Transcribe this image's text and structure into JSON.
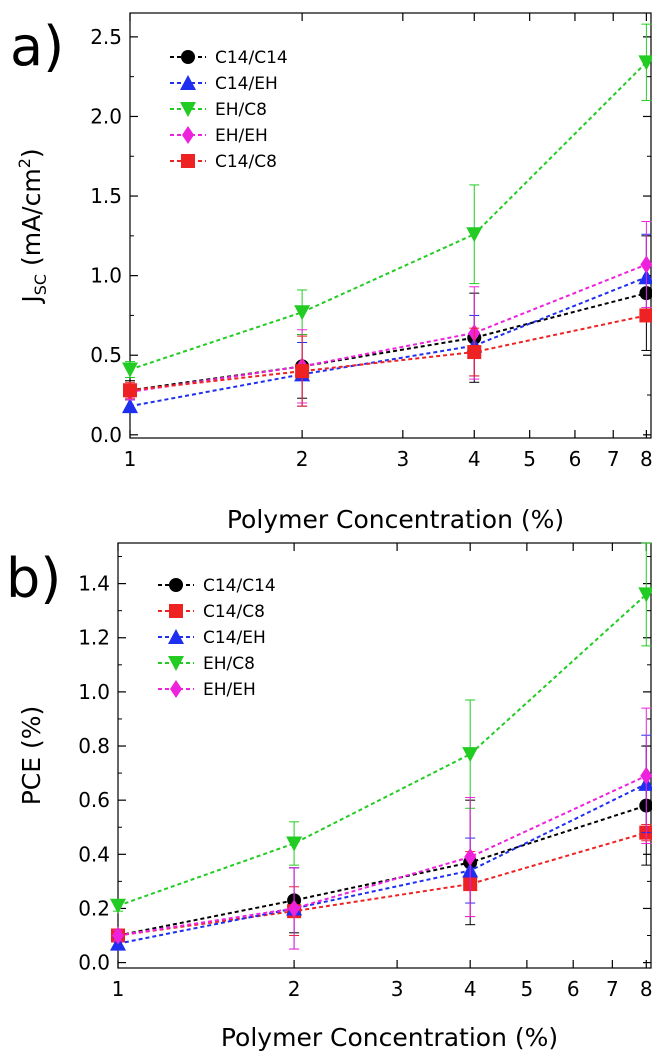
{
  "chart_data": [
    {
      "type": "line",
      "panel_label": "a)",
      "ylabel_main": "J",
      "ylabel_sub": "SC",
      "ylabel_tail": " (mA/cm",
      "ylabel_sup": "2",
      "ylabel_end": ")",
      "xlabel": "Polymer Concentration (%)",
      "x_scale": "log",
      "xlim": [
        1,
        8.15
      ],
      "ylim": [
        -0.02,
        2.65
      ],
      "x_ticks": [
        1,
        2,
        3,
        4,
        5,
        6,
        7,
        8
      ],
      "x_tick_labels": [
        "1",
        "2",
        "3",
        "4",
        "5",
        "6",
        "7",
        "8"
      ],
      "y_ticks": [
        0.0,
        0.5,
        1.0,
        1.5,
        2.0,
        2.5
      ],
      "y_tick_labels": [
        "0.0",
        "0.5",
        "1.0",
        "1.5",
        "2.0",
        "2.5"
      ],
      "legend_position": "top-left",
      "grid": false,
      "series": [
        {
          "name": "C14/C14",
          "color": "#000000",
          "marker": "circle",
          "x": [
            1,
            2,
            4,
            8
          ],
          "values": [
            0.28,
            0.43,
            0.61,
            0.89
          ],
          "errors": [
            0.06,
            0.2,
            0.28,
            0.36
          ]
        },
        {
          "name": "C14/EH",
          "color": "#1f2ff0",
          "marker": "triangle-up",
          "x": [
            1,
            2,
            4,
            8
          ],
          "values": [
            0.18,
            0.38,
            0.56,
            0.99
          ],
          "errors": [
            0.04,
            0.2,
            0.19,
            0.27
          ]
        },
        {
          "name": "EH/C8",
          "color": "#22cc22",
          "marker": "triangle-down",
          "x": [
            1,
            2,
            4,
            8
          ],
          "values": [
            0.41,
            0.77,
            1.26,
            2.34
          ],
          "errors": [
            0.05,
            0.14,
            0.31,
            0.24
          ]
        },
        {
          "name": "EH/EH",
          "color": "#ee22dd",
          "marker": "diamond",
          "x": [
            1,
            2,
            4,
            8
          ],
          "values": [
            0.27,
            0.43,
            0.64,
            1.07
          ],
          "errors": [
            0.05,
            0.23,
            0.29,
            0.27
          ]
        },
        {
          "name": "C14/C8",
          "color": "#ee2222",
          "marker": "square",
          "x": [
            1,
            2,
            4,
            8
          ],
          "values": [
            0.28,
            0.4,
            0.52,
            0.75
          ],
          "errors": [
            0.05,
            0.22,
            0.15,
            0.03
          ]
        }
      ]
    },
    {
      "type": "line",
      "panel_label": "b)",
      "ylabel_main": "PCE (%)",
      "xlabel": "Polymer Concentration (%)",
      "x_scale": "log",
      "xlim": [
        1,
        8.15
      ],
      "ylim": [
        -0.02,
        1.55
      ],
      "x_ticks": [
        1,
        2,
        3,
        4,
        5,
        6,
        7,
        8
      ],
      "x_tick_labels": [
        "1",
        "2",
        "3",
        "4",
        "5",
        "6",
        "7",
        "8"
      ],
      "y_ticks": [
        0.0,
        0.2,
        0.4,
        0.6,
        0.8,
        1.0,
        1.2,
        1.4
      ],
      "y_tick_labels": [
        "0.0",
        "0.2",
        "0.4",
        "0.6",
        "0.8",
        "1.0",
        "1.2",
        "1.4"
      ],
      "legend_position": "top-left",
      "grid": false,
      "series": [
        {
          "name": "C14/C14",
          "color": "#000000",
          "marker": "circle",
          "x": [
            1,
            2,
            4,
            8
          ],
          "values": [
            0.1,
            0.23,
            0.37,
            0.58
          ],
          "errors": [
            0.02,
            0.12,
            0.23,
            0.22
          ]
        },
        {
          "name": "C14/C8",
          "color": "#ee2222",
          "marker": "square",
          "x": [
            1,
            2,
            4,
            8
          ],
          "values": [
            0.1,
            0.19,
            0.29,
            0.48
          ],
          "errors": [
            0.02,
            0.09,
            0.12,
            0.03
          ]
        },
        {
          "name": "C14/EH",
          "color": "#1f2ff0",
          "marker": "triangle-up",
          "x": [
            1,
            2,
            4,
            8
          ],
          "values": [
            0.07,
            0.2,
            0.34,
            0.66
          ],
          "errors": [
            0.02,
            0.15,
            0.12,
            0.18
          ]
        },
        {
          "name": "EH/C8",
          "color": "#22cc22",
          "marker": "triangle-down",
          "x": [
            1,
            2,
            4,
            8
          ],
          "values": [
            0.21,
            0.44,
            0.77,
            1.36
          ],
          "errors": [
            0.02,
            0.08,
            0.2,
            0.19
          ]
        },
        {
          "name": "EH/EH",
          "color": "#ee22dd",
          "marker": "diamond",
          "x": [
            1,
            2,
            4,
            8
          ],
          "values": [
            0.1,
            0.2,
            0.39,
            0.69
          ],
          "errors": [
            0.02,
            0.15,
            0.22,
            0.25
          ]
        }
      ]
    }
  ]
}
